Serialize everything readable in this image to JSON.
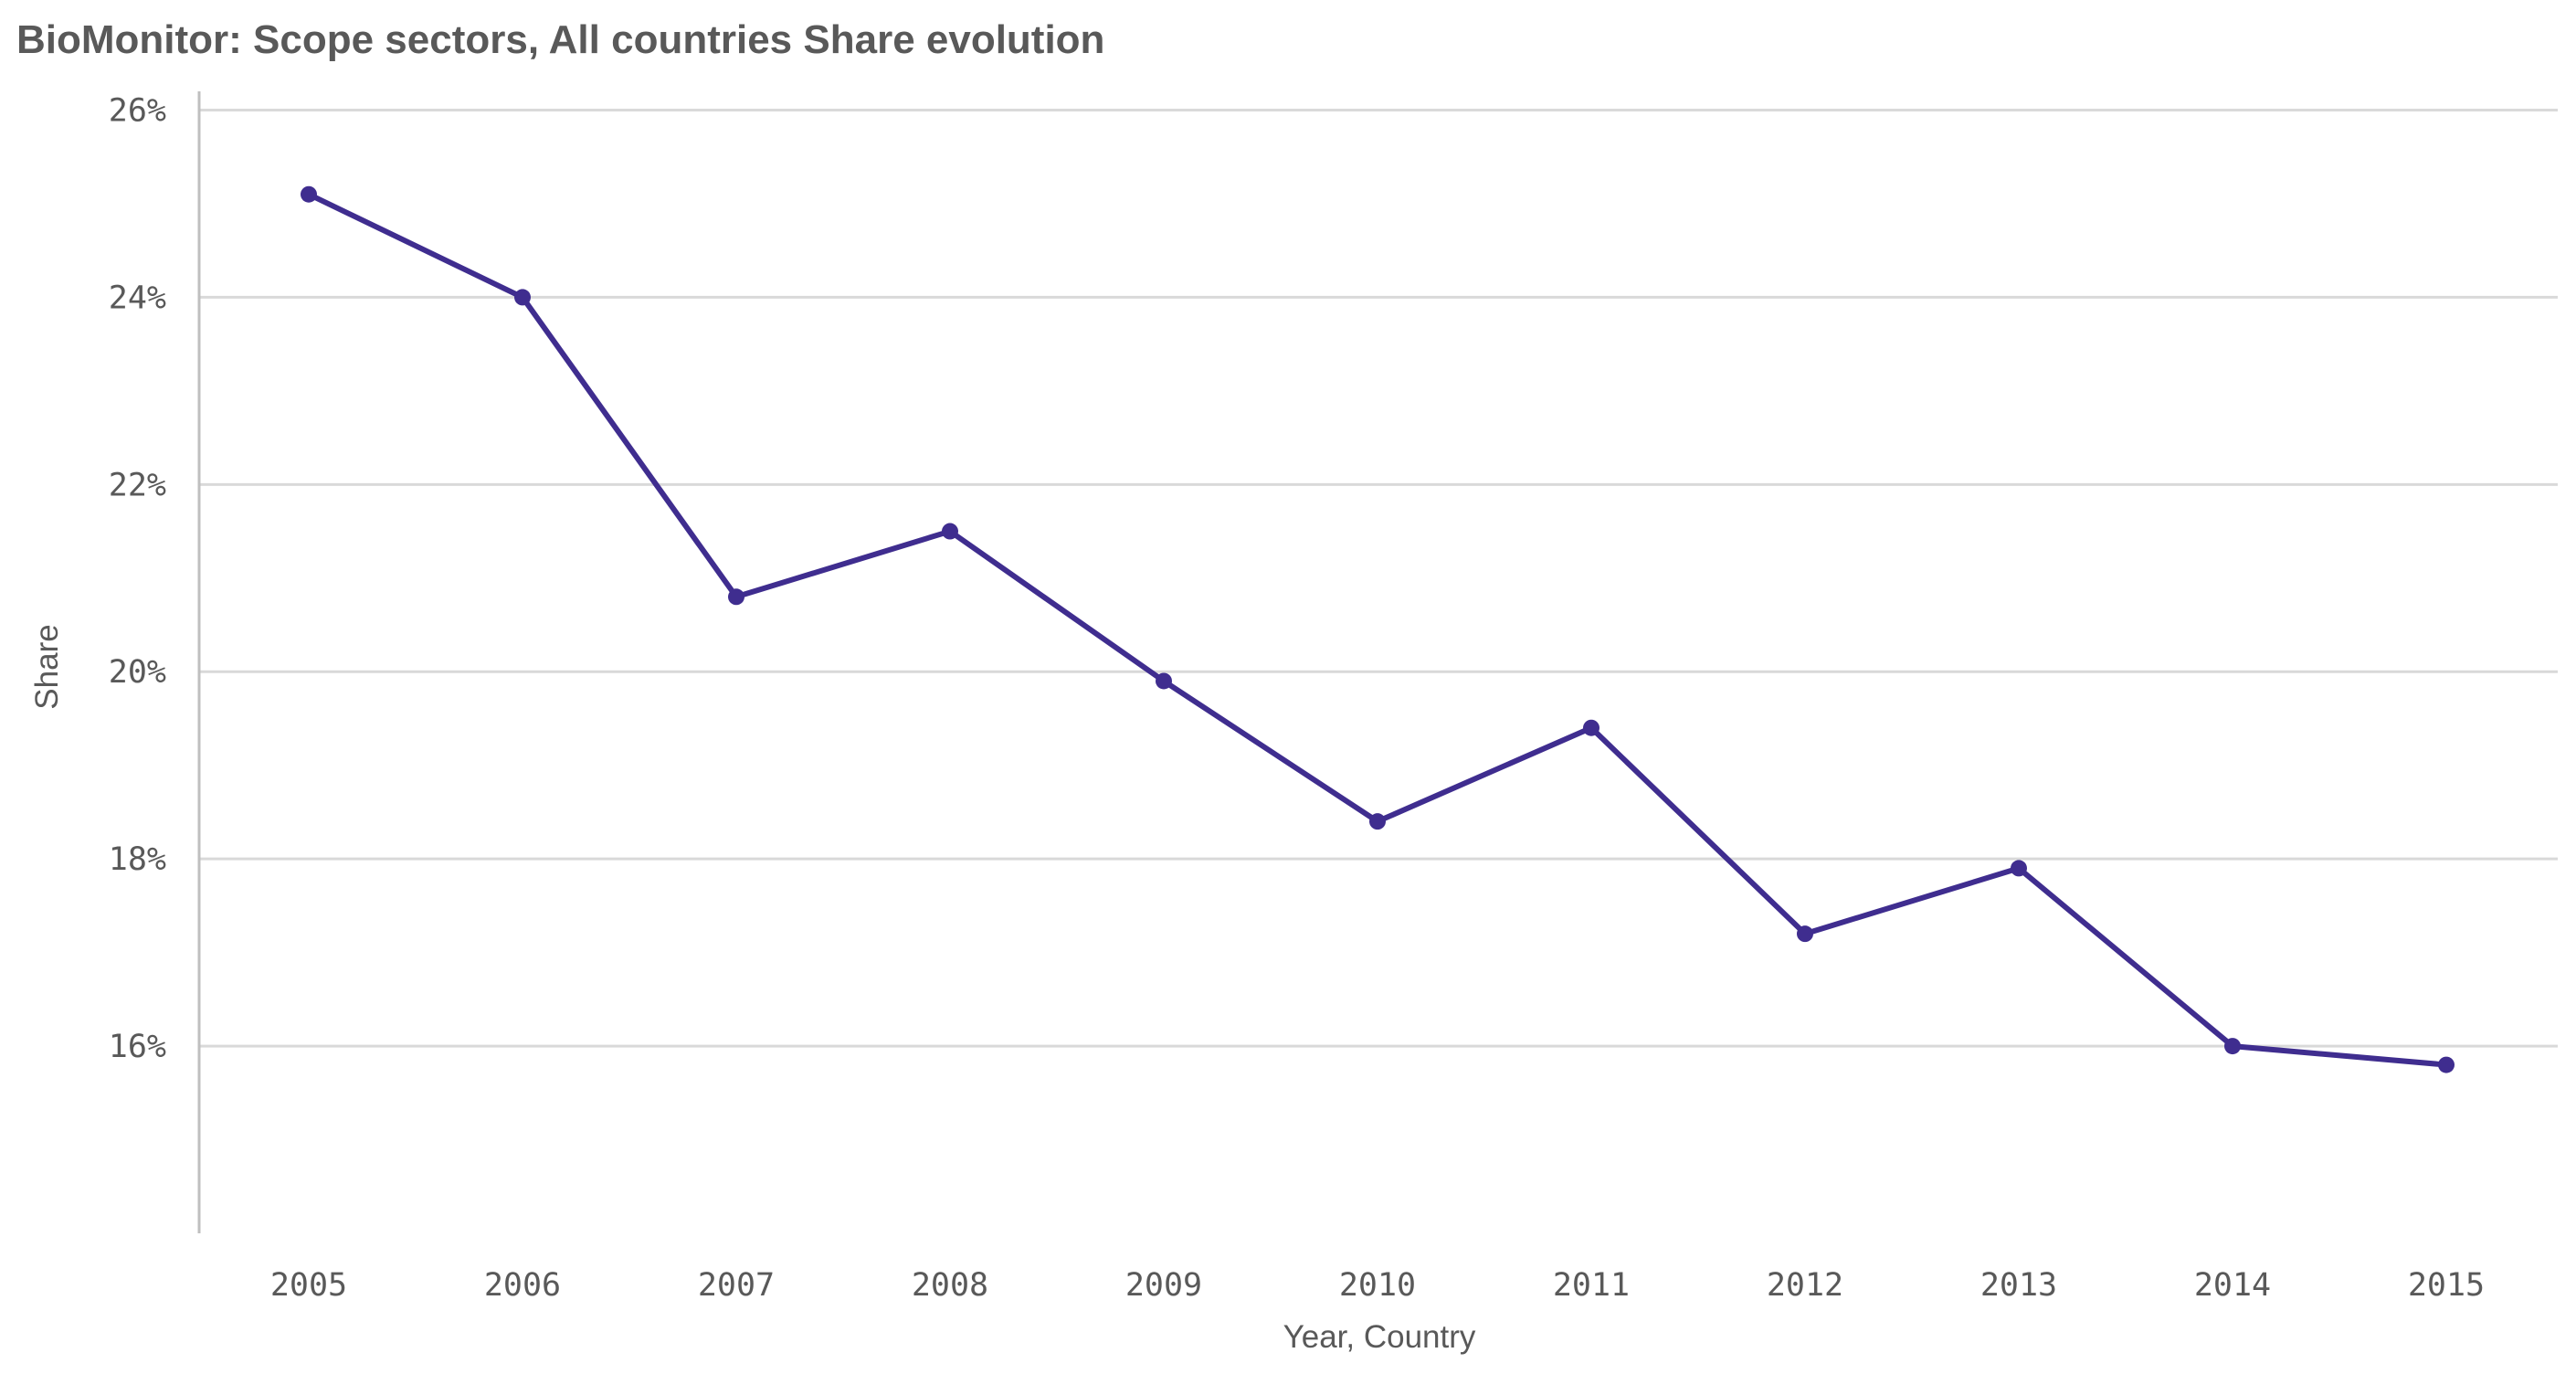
{
  "chart_data": {
    "type": "line",
    "title": "BioMonitor: Scope sectors, All countries Share evolution",
    "xlabel": "Year, Country",
    "ylabel": "Share",
    "categories": [
      "2005",
      "2006",
      "2007",
      "2008",
      "2009",
      "2010",
      "2011",
      "2012",
      "2013",
      "2014",
      "2015"
    ],
    "series": [
      {
        "name": "Share",
        "values": [
          25.1,
          24.0,
          20.8,
          21.5,
          19.9,
          18.4,
          19.4,
          17.2,
          17.9,
          16.0,
          15.8
        ]
      }
    ],
    "ylim": [
      14.0,
      26.2
    ],
    "yticks": [
      16,
      18,
      20,
      22,
      24,
      26
    ],
    "ytick_labels": [
      "16%",
      "18%",
      "20%",
      "22%",
      "24%",
      "26%"
    ],
    "grid": true,
    "legend": "none"
  },
  "colors": {
    "series": "#3f2d8f",
    "grid": "#d9d9d9",
    "text": "#595959"
  }
}
